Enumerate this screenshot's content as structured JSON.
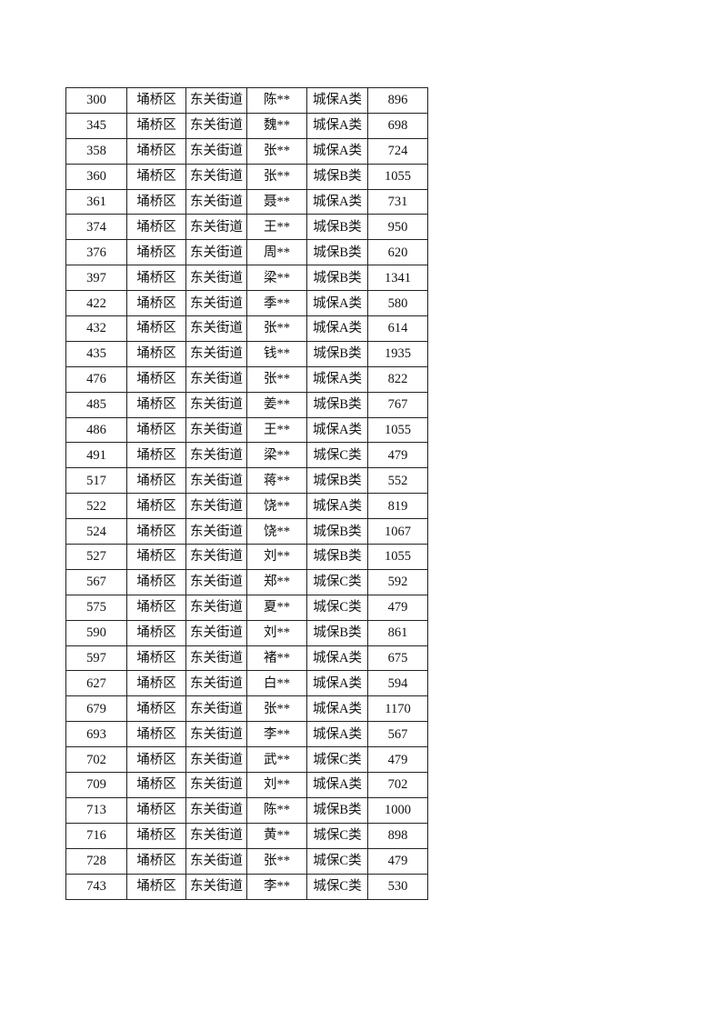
{
  "table": {
    "rows": [
      [
        "300",
        "埇桥区",
        "东关街道",
        "陈**",
        "城保A类",
        "896"
      ],
      [
        "345",
        "埇桥区",
        "东关街道",
        "魏**",
        "城保A类",
        "698"
      ],
      [
        "358",
        "埇桥区",
        "东关街道",
        "张**",
        "城保A类",
        "724"
      ],
      [
        "360",
        "埇桥区",
        "东关街道",
        "张**",
        "城保B类",
        "1055"
      ],
      [
        "361",
        "埇桥区",
        "东关街道",
        "聂**",
        "城保A类",
        "731"
      ],
      [
        "374",
        "埇桥区",
        "东关街道",
        "王**",
        "城保B类",
        "950"
      ],
      [
        "376",
        "埇桥区",
        "东关街道",
        "周**",
        "城保B类",
        "620"
      ],
      [
        "397",
        "埇桥区",
        "东关街道",
        "梁**",
        "城保B类",
        "1341"
      ],
      [
        "422",
        "埇桥区",
        "东关街道",
        "季**",
        "城保A类",
        "580"
      ],
      [
        "432",
        "埇桥区",
        "东关街道",
        "张**",
        "城保A类",
        "614"
      ],
      [
        "435",
        "埇桥区",
        "东关街道",
        "钱**",
        "城保B类",
        "1935"
      ],
      [
        "476",
        "埇桥区",
        "东关街道",
        "张**",
        "城保A类",
        "822"
      ],
      [
        "485",
        "埇桥区",
        "东关街道",
        "姜**",
        "城保B类",
        "767"
      ],
      [
        "486",
        "埇桥区",
        "东关街道",
        "王**",
        "城保A类",
        "1055"
      ],
      [
        "491",
        "埇桥区",
        "东关街道",
        "梁**",
        "城保C类",
        "479"
      ],
      [
        "517",
        "埇桥区",
        "东关街道",
        "蒋**",
        "城保B类",
        "552"
      ],
      [
        "522",
        "埇桥区",
        "东关街道",
        "饶**",
        "城保A类",
        "819"
      ],
      [
        "524",
        "埇桥区",
        "东关街道",
        "饶**",
        "城保B类",
        "1067"
      ],
      [
        "527",
        "埇桥区",
        "东关街道",
        "刘**",
        "城保B类",
        "1055"
      ],
      [
        "567",
        "埇桥区",
        "东关街道",
        "郑**",
        "城保C类",
        "592"
      ],
      [
        "575",
        "埇桥区",
        "东关街道",
        "夏**",
        "城保C类",
        "479"
      ],
      [
        "590",
        "埇桥区",
        "东关街道",
        "刘**",
        "城保B类",
        "861"
      ],
      [
        "597",
        "埇桥区",
        "东关街道",
        "褚**",
        "城保A类",
        "675"
      ],
      [
        "627",
        "埇桥区",
        "东关街道",
        "白**",
        "城保A类",
        "594"
      ],
      [
        "679",
        "埇桥区",
        "东关街道",
        "张**",
        "城保A类",
        "1170"
      ],
      [
        "693",
        "埇桥区",
        "东关街道",
        "李**",
        "城保A类",
        "567"
      ],
      [
        "702",
        "埇桥区",
        "东关街道",
        "武**",
        "城保C类",
        "479"
      ],
      [
        "709",
        "埇桥区",
        "东关街道",
        "刘**",
        "城保A类",
        "702"
      ],
      [
        "713",
        "埇桥区",
        "东关街道",
        "陈**",
        "城保B类",
        "1000"
      ],
      [
        "716",
        "埇桥区",
        "东关街道",
        "黄**",
        "城保C类",
        "898"
      ],
      [
        "728",
        "埇桥区",
        "东关街道",
        "张**",
        "城保C类",
        "479"
      ],
      [
        "743",
        "埇桥区",
        "东关街道",
        "李**",
        "城保C类",
        "530"
      ]
    ]
  }
}
